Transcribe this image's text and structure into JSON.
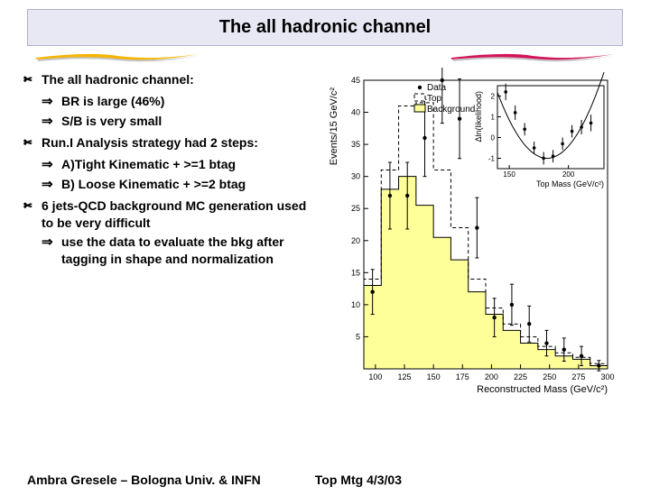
{
  "title": "The all hadronic channel",
  "bullets": [
    {
      "text": "The all hadronic channel:",
      "sub": [
        "BR is large (46%)",
        "S/B is very small"
      ]
    },
    {
      "text": "Run.I Analysis strategy had 2 steps:",
      "sub": [
        "A)Tight Kinematic + >=1 btag",
        "B) Loose Kinematic + >=2 btag"
      ]
    },
    {
      "text": "6 jets-QCD background MC generation used to be very difficult",
      "sub": [
        " use the data to evaluate the bkg after tagging in shape and normalization"
      ]
    }
  ],
  "footer_left": "Ambra Gresele – Bologna Univ. & INFN",
  "footer_right": "Top Mtg 4/3/03",
  "swoosh": {
    "left_color": "#f7b500",
    "right_color": "#d4145a",
    "shadow": "#888888"
  },
  "main_chart": {
    "type": "histogram-with-points",
    "xlabel": "Reconstructed Mass (GeV/c²)",
    "ylabel": "Events/15 GeV/c²",
    "ylabel_fontsize": 11,
    "xlim": [
      90,
      300
    ],
    "ylim": [
      0,
      45
    ],
    "xticks": [
      100,
      125,
      150,
      175,
      200,
      225,
      250,
      275,
      300
    ],
    "yticks": [
      0,
      5,
      10,
      15,
      20,
      25,
      30,
      35,
      40,
      45
    ],
    "legend": [
      {
        "label": "Data",
        "marker": "point",
        "color": "#000000"
      },
      {
        "label": "Top",
        "marker": "box",
        "color": "#ffffff",
        "dash": "4 3"
      },
      {
        "label": "Background",
        "marker": "box",
        "color": "#ffff99"
      }
    ],
    "bin_width": 15,
    "background_bins": {
      "x_start": 90,
      "values": [
        13,
        28,
        30,
        25.5,
        20.5,
        17,
        12,
        8.5,
        6,
        4,
        3,
        2,
        1.5,
        0.5
      ]
    },
    "top_bins": {
      "x_start": 90,
      "values": [
        14,
        31,
        41,
        41.5,
        31,
        22,
        14,
        9.5,
        7,
        5,
        3.5,
        2.5,
        1.8,
        0.8
      ]
    },
    "data_points": [
      {
        "x": 97.5,
        "y": 12,
        "err": 3.5
      },
      {
        "x": 112.5,
        "y": 27,
        "err": 5.2
      },
      {
        "x": 127.5,
        "y": 27,
        "err": 5.2
      },
      {
        "x": 142.5,
        "y": 36,
        "err": 6.0
      },
      {
        "x": 157.5,
        "y": 45,
        "err": 6.7
      },
      {
        "x": 172.5,
        "y": 39,
        "err": 6.2
      },
      {
        "x": 187.5,
        "y": 22,
        "err": 4.7
      },
      {
        "x": 202.5,
        "y": 8,
        "err": 3.0
      },
      {
        "x": 217.5,
        "y": 10,
        "err": 3.2
      },
      {
        "x": 232.5,
        "y": 7,
        "err": 2.8
      },
      {
        "x": 247.5,
        "y": 4,
        "err": 2.0
      },
      {
        "x": 262.5,
        "y": 3,
        "err": 1.8
      },
      {
        "x": 277.5,
        "y": 2,
        "err": 1.5
      },
      {
        "x": 292.5,
        "y": 0.5,
        "err": 0.8
      }
    ],
    "colors": {
      "bg_fill": "#ffff99",
      "line": "#000000",
      "axis": "#000000"
    }
  },
  "inset_chart": {
    "type": "scatter-curve",
    "xlabel": "Top Mass (GeV/c²)",
    "ylabel": "Δln(likelihood)",
    "xlim": [
      140,
      230
    ],
    "ylim": [
      -1.5,
      2.5
    ],
    "xticks": [
      150,
      200
    ],
    "yticks": [
      -1,
      0,
      1,
      2
    ],
    "points": [
      {
        "x": 147,
        "y": 2.2,
        "err": 0.4
      },
      {
        "x": 155,
        "y": 1.2,
        "err": 0.35
      },
      {
        "x": 163,
        "y": 0.4,
        "err": 0.3
      },
      {
        "x": 171,
        "y": -0.5,
        "err": 0.3
      },
      {
        "x": 179,
        "y": -1.0,
        "err": 0.3
      },
      {
        "x": 187,
        "y": -0.9,
        "err": 0.3
      },
      {
        "x": 195,
        "y": -0.3,
        "err": 0.3
      },
      {
        "x": 203,
        "y": 0.3,
        "err": 0.3
      },
      {
        "x": 211,
        "y": 0.5,
        "err": 0.35
      },
      {
        "x": 219,
        "y": 0.7,
        "err": 0.4
      }
    ],
    "curve_min_x": 182,
    "colors": {
      "line": "#000000"
    }
  }
}
